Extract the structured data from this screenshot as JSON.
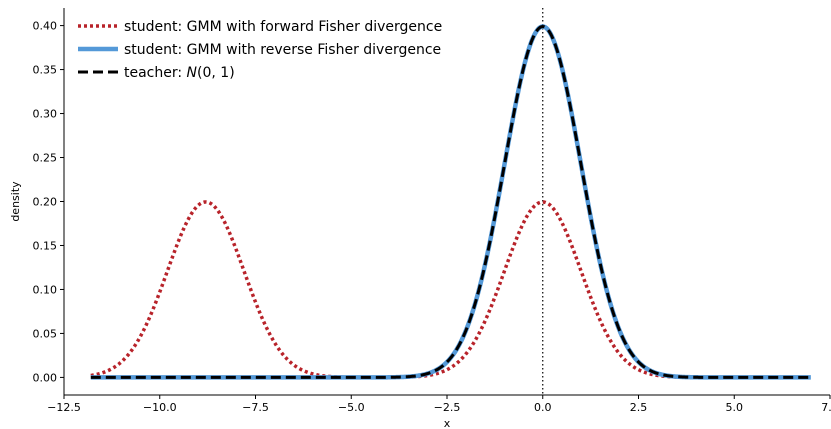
{
  "chart_data": {
    "type": "line",
    "xlabel": "x",
    "ylabel": "density",
    "xlim": [
      -12.5,
      7.5
    ],
    "ylim": [
      -0.02,
      0.42
    ],
    "x_range": [
      -11.8,
      7.0
    ],
    "xticks": [
      "−12.5",
      "−10.0",
      "−7.5",
      "−5.0",
      "−2.5",
      "0.0",
      "2.5",
      "5.0",
      "7.5"
    ],
    "xtick_values": [
      -12.5,
      -10.0,
      -7.5,
      -5.0,
      -2.5,
      0.0,
      2.5,
      5.0,
      7.5
    ],
    "yticks": [
      "0.00",
      "0.05",
      "0.10",
      "0.15",
      "0.20",
      "0.25",
      "0.30",
      "0.35",
      "0.40"
    ],
    "ytick_values": [
      0.0,
      0.05,
      0.1,
      0.15,
      0.2,
      0.25,
      0.3,
      0.35,
      0.4
    ],
    "grid": false,
    "legend_position": "top-left",
    "vertical_reference_line": 0.0,
    "series": [
      {
        "name": "student: GMM with forward Fisher divergence",
        "color": "#b8232a",
        "style": "dotted",
        "components": [
          {
            "weight": 0.5,
            "mean": -8.8,
            "std": 1.0
          },
          {
            "weight": 0.5,
            "mean": 0.0,
            "std": 1.0
          }
        ]
      },
      {
        "name": "student: GMM with reverse Fisher divergence",
        "color": "#5499d8",
        "style": "solid",
        "components": [
          {
            "weight": 1.0,
            "mean": 0.0,
            "std": 1.0
          }
        ]
      },
      {
        "name_prefix": "teacher: ",
        "name_math": "N(0, 1)",
        "color": "#000000",
        "style": "dashed",
        "components": [
          {
            "weight": 1.0,
            "mean": 0.0,
            "std": 1.0
          }
        ]
      }
    ]
  }
}
